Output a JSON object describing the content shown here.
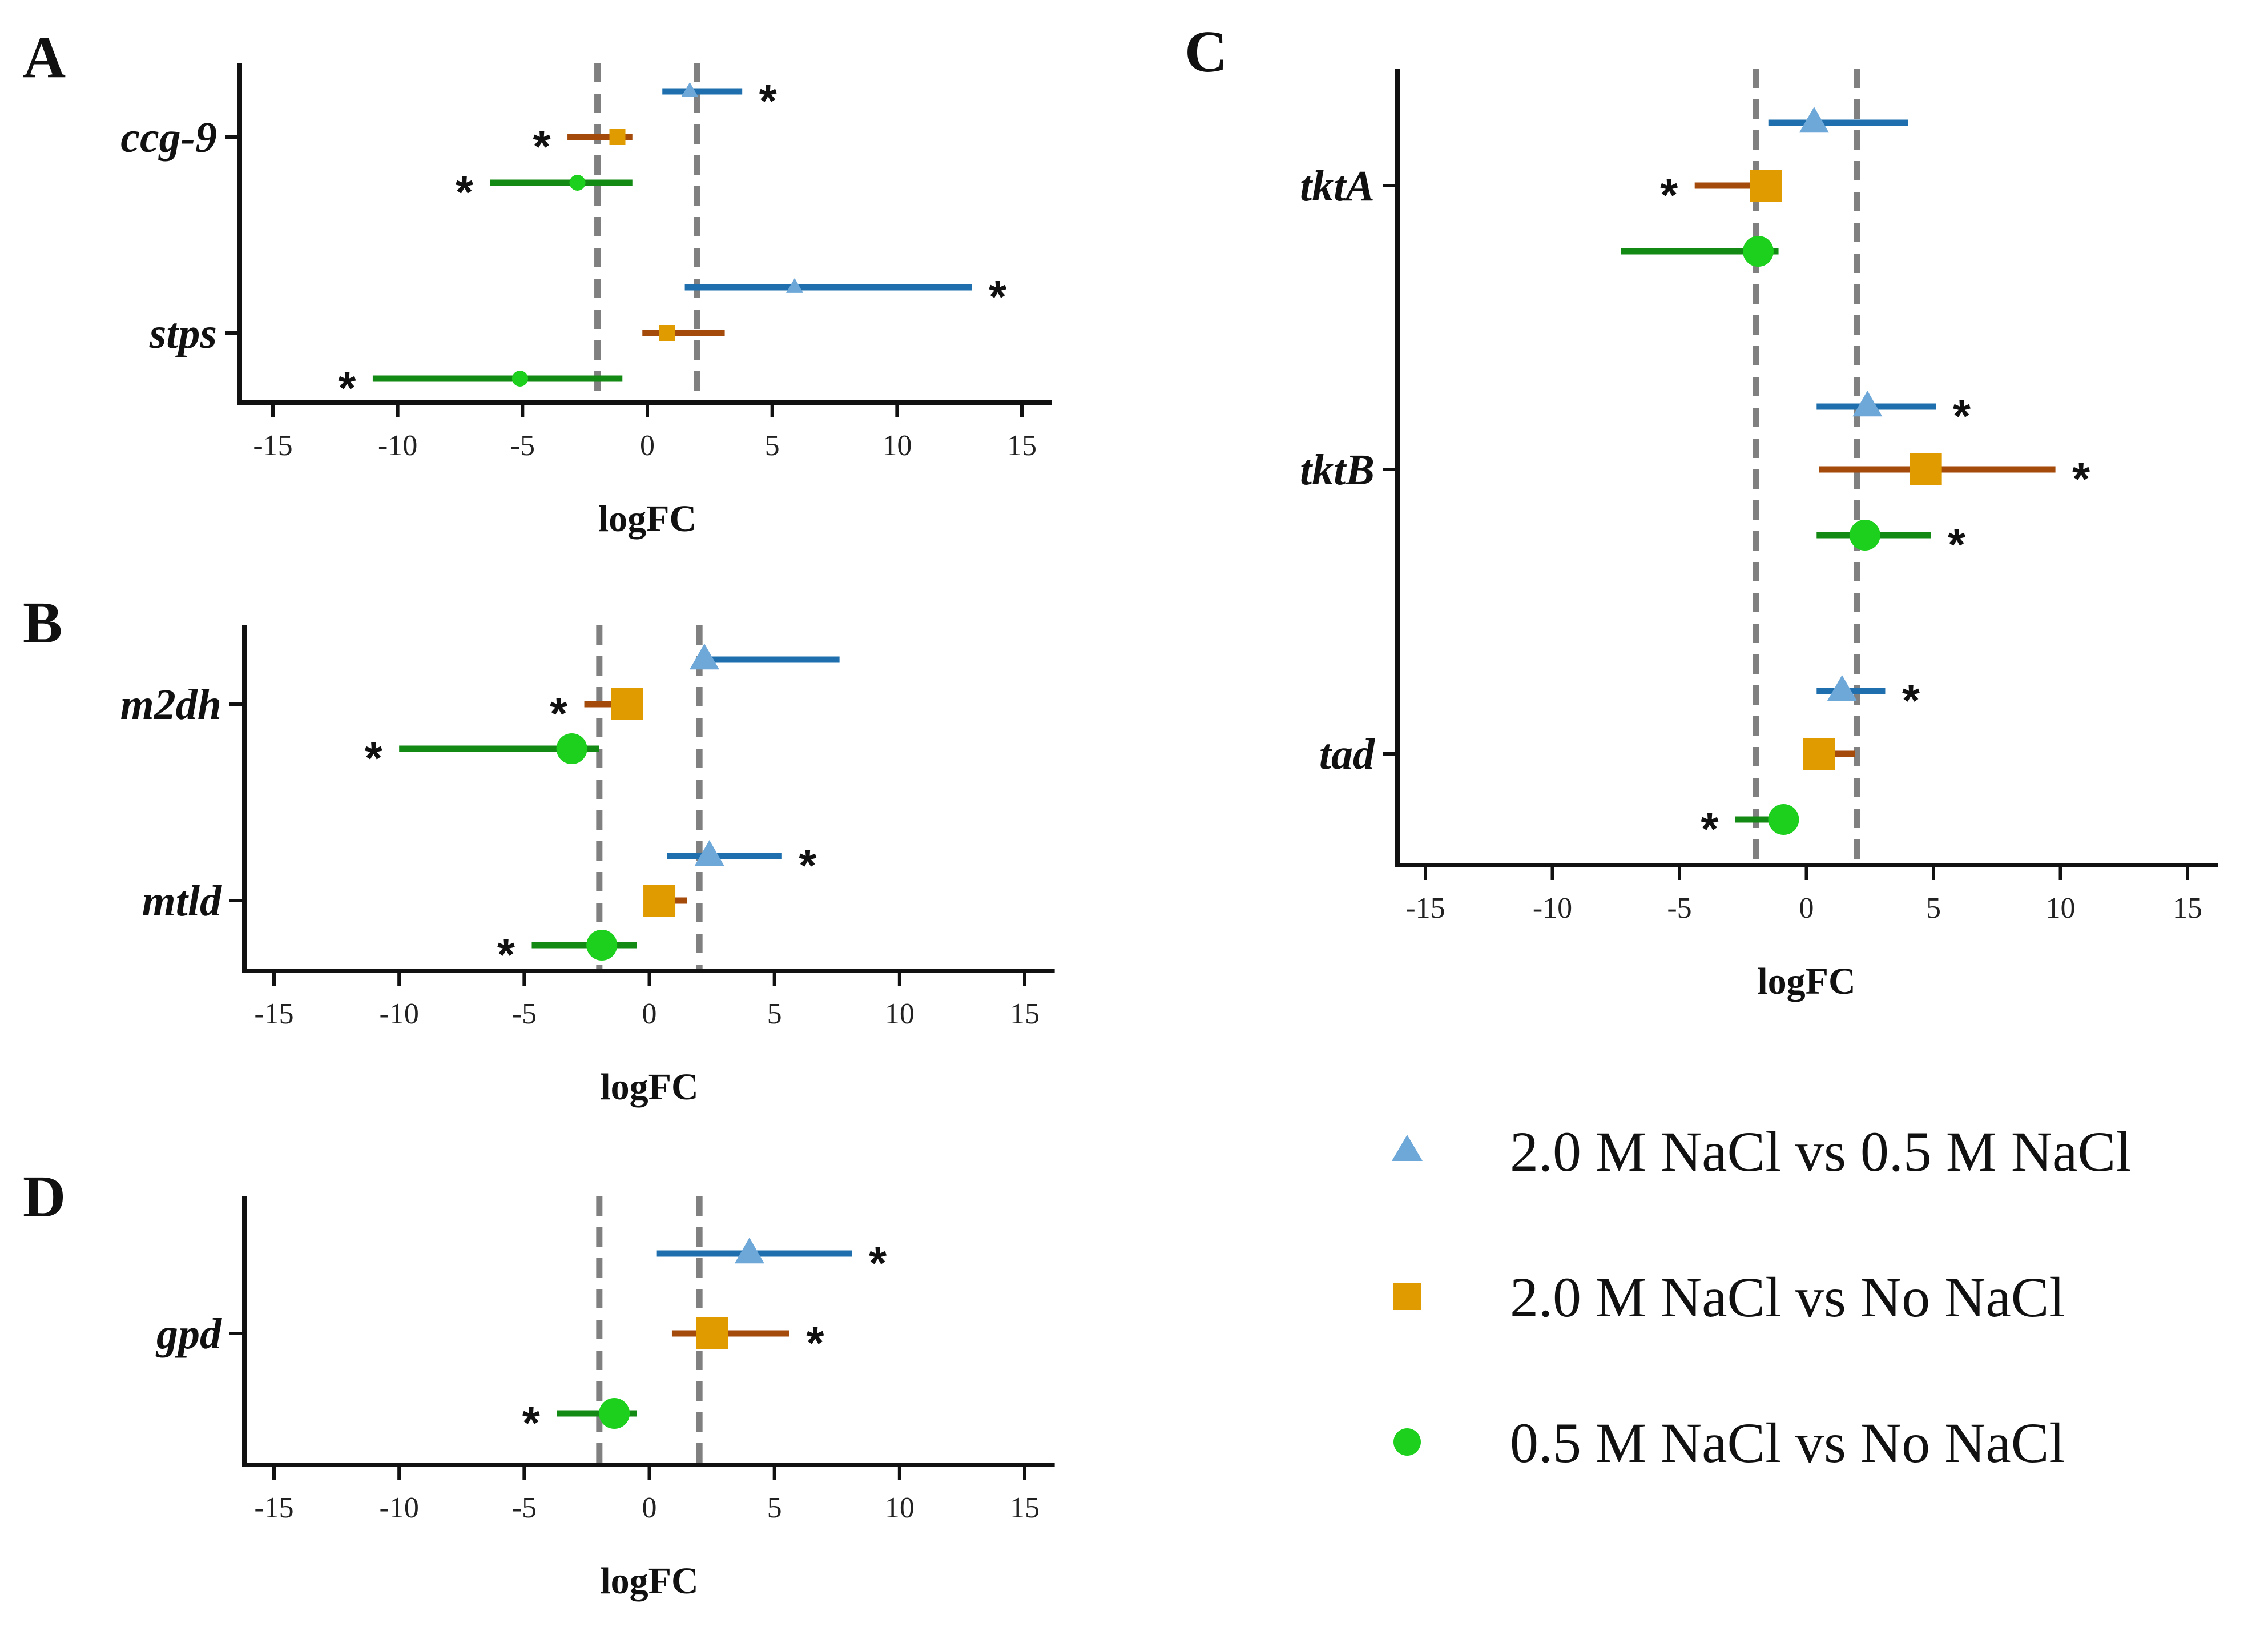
{
  "chart_data": [
    {
      "panel": "A",
      "type": "forest",
      "xlabel": "logFC",
      "xlim": [
        -16,
        16
      ],
      "xticks": [
        -15,
        -10,
        -5,
        0,
        5,
        10,
        15
      ],
      "thresholds": [
        -2,
        2
      ],
      "genes": [
        {
          "name": "ccg-9",
          "points": [
            {
              "series": 0,
              "value": 1.7,
              "low": 0.6,
              "high": 3.8,
              "sig": "*"
            },
            {
              "series": 1,
              "value": -1.2,
              "low": -3.2,
              "high": -0.6,
              "sig": "*"
            },
            {
              "series": 2,
              "value": -2.8,
              "low": -6.3,
              "high": -0.6,
              "sig": "*"
            }
          ]
        },
        {
          "name": "stps",
          "points": [
            {
              "series": 0,
              "value": 5.9,
              "low": 1.5,
              "high": 13.0,
              "sig": "*"
            },
            {
              "series": 1,
              "value": 0.8,
              "low": -0.2,
              "high": 3.1,
              "sig": ""
            },
            {
              "series": 2,
              "value": -5.1,
              "low": -11.0,
              "high": -1.0,
              "sig": "*"
            }
          ]
        }
      ]
    },
    {
      "panel": "B",
      "type": "forest",
      "xlabel": "logFC",
      "xlim": [
        -16,
        16
      ],
      "xticks": [
        -15,
        -10,
        -5,
        0,
        5,
        10,
        15
      ],
      "thresholds": [
        -2,
        2
      ],
      "genes": [
        {
          "name": "m2dh",
          "points": [
            {
              "series": 0,
              "value": 2.2,
              "low": 2.2,
              "high": 7.6,
              "sig": ""
            },
            {
              "series": 1,
              "value": -0.9,
              "low": -2.6,
              "high": -0.9,
              "sig": "*"
            },
            {
              "series": 2,
              "value": -3.1,
              "low": -10.0,
              "high": -2.0,
              "sig": "*"
            }
          ]
        },
        {
          "name": "mtld",
          "points": [
            {
              "series": 0,
              "value": 2.4,
              "low": 0.7,
              "high": 5.3,
              "sig": "*"
            },
            {
              "series": 1,
              "value": 0.4,
              "low": 0.4,
              "high": 1.5,
              "sig": ""
            },
            {
              "series": 2,
              "value": -1.9,
              "low": -4.7,
              "high": -0.5,
              "sig": "*"
            }
          ]
        }
      ]
    },
    {
      "panel": "C",
      "type": "forest",
      "xlabel": "logFC",
      "xlim": [
        -15.5,
        16
      ],
      "xticks": [
        -15,
        -10,
        -5,
        0,
        5,
        10,
        15
      ],
      "thresholds": [
        -2,
        2
      ],
      "genes": [
        {
          "name": "tktA",
          "points": [
            {
              "series": 0,
              "value": 0.3,
              "low": -1.5,
              "high": 4.0,
              "sig": ""
            },
            {
              "series": 1,
              "value": -1.6,
              "low": -4.4,
              "high": -1.6,
              "sig": "*"
            },
            {
              "series": 2,
              "value": -1.9,
              "low": -7.3,
              "high": -1.1,
              "sig": ""
            }
          ]
        },
        {
          "name": "tktB",
          "points": [
            {
              "series": 0,
              "value": 2.4,
              "low": 0.4,
              "high": 5.1,
              "sig": "*"
            },
            {
              "series": 1,
              "value": 4.7,
              "low": 0.5,
              "high": 9.8,
              "sig": "*"
            },
            {
              "series": 2,
              "value": 2.3,
              "low": 0.4,
              "high": 4.9,
              "sig": "*"
            }
          ]
        },
        {
          "name": "tad",
          "points": [
            {
              "series": 0,
              "value": 1.4,
              "low": 0.4,
              "high": 3.1,
              "sig": "*"
            },
            {
              "series": 1,
              "value": 0.5,
              "low": 0.5,
              "high": 1.9,
              "sig": ""
            },
            {
              "series": 2,
              "value": -0.9,
              "low": -2.8,
              "high": -0.9,
              "sig": "*"
            }
          ]
        }
      ]
    },
    {
      "panel": "D",
      "type": "forest",
      "xlabel": "logFC",
      "xlim": [
        -16,
        16
      ],
      "xticks": [
        -15,
        -10,
        -5,
        0,
        5,
        10,
        15
      ],
      "thresholds": [
        -2,
        2
      ],
      "genes": [
        {
          "name": "gpd",
          "points": [
            {
              "series": 0,
              "value": 4.0,
              "low": 0.3,
              "high": 8.1,
              "sig": "*"
            },
            {
              "series": 1,
              "value": 2.5,
              "low": 0.9,
              "high": 5.6,
              "sig": "*"
            },
            {
              "series": 2,
              "value": -1.4,
              "low": -3.7,
              "high": -0.5,
              "sig": "*"
            }
          ]
        }
      ]
    }
  ],
  "legend": [
    {
      "label": "2.0 M NaCl vs 0.5 M NaCl",
      "marker": "triangle",
      "color": "#6ea8d8",
      "line_color": "#1f6fae"
    },
    {
      "label": "2.0 M NaCl vs No NaCl",
      "marker": "square",
      "color": "#e09b00",
      "line_color": "#a44a0a"
    },
    {
      "label": "0.5 M NaCl vs No NaCl",
      "marker": "circle",
      "color": "#1ed01e",
      "line_color": "#138a13"
    }
  ]
}
